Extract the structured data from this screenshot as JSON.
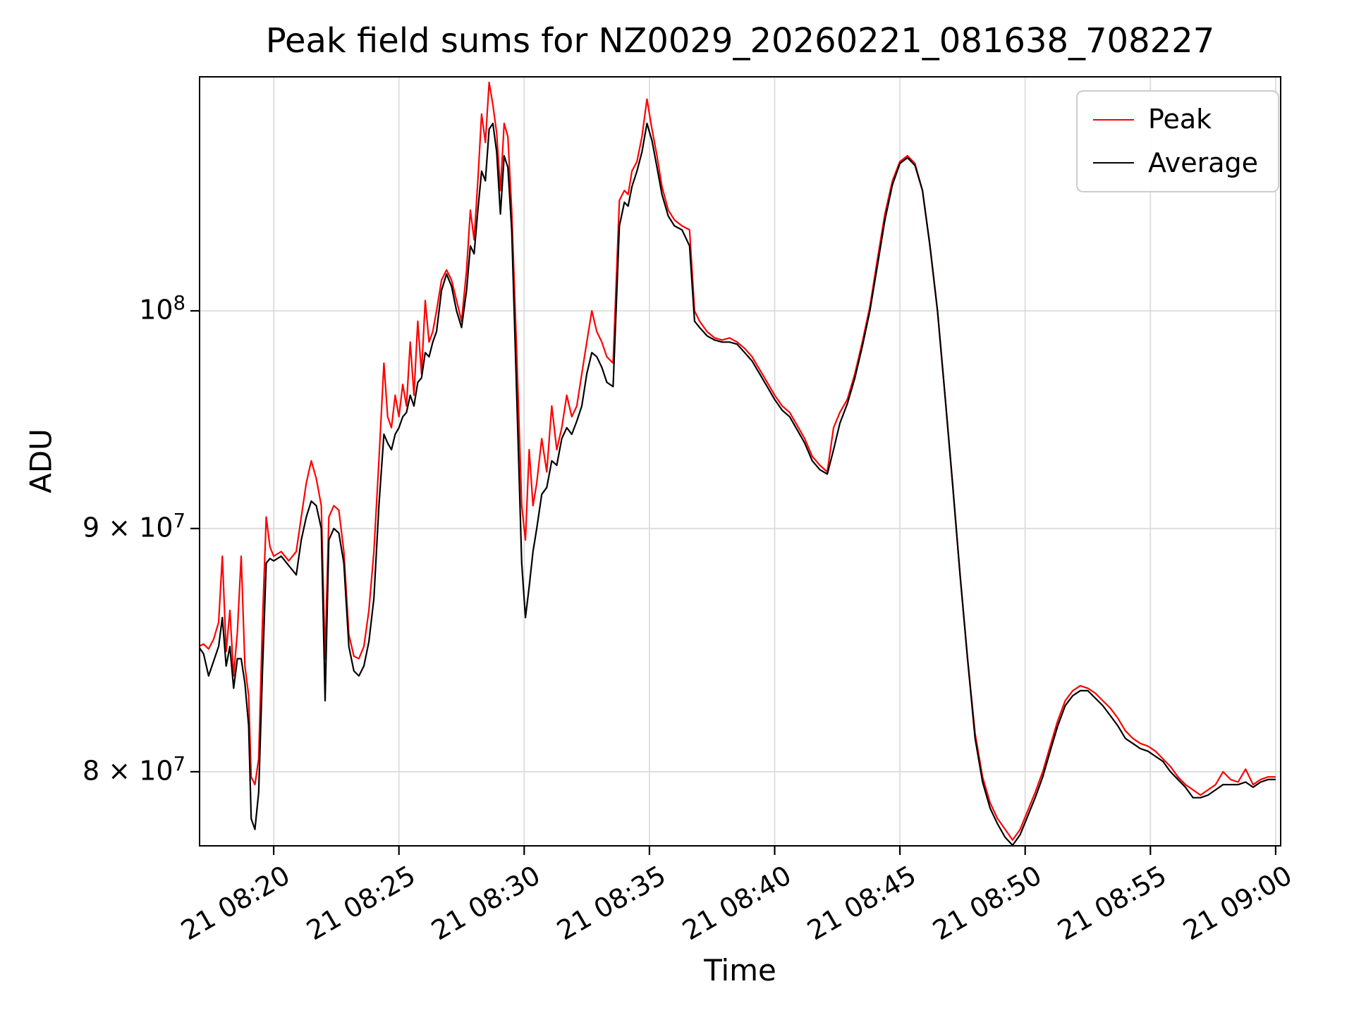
{
  "chart_data": {
    "type": "line",
    "title": "Peak field sums for NZ0029_20260221_081638_708227",
    "xlabel": "Time",
    "ylabel": "ADU",
    "y_scale": "log",
    "grid": true,
    "grid_color": "#dcdcdc",
    "legend_position": "upper right",
    "xlim_minutes": [
      17.04,
      60.2
    ],
    "ylim": [
      77180000,
      112000000
    ],
    "value_scale": 10000000,
    "x_ticks": [
      {
        "minute": 20,
        "label": "21 08:20"
      },
      {
        "minute": 25,
        "label": "21 08:25"
      },
      {
        "minute": 30,
        "label": "21 08:30"
      },
      {
        "minute": 35,
        "label": "21 08:35"
      },
      {
        "minute": 40,
        "label": "21 08:40"
      },
      {
        "minute": 45,
        "label": "21 08:45"
      },
      {
        "minute": 50,
        "label": "21 08:50"
      },
      {
        "minute": 55,
        "label": "21 08:55"
      },
      {
        "minute": 60,
        "label": "21 09:00"
      }
    ],
    "y_ticks": [
      {
        "value": 100000000,
        "label": "10^8",
        "coeff": "",
        "exp": "8"
      },
      {
        "value": 90000000,
        "label": "9 × 10^7",
        "coeff": "9 × ",
        "exp": "7"
      },
      {
        "value": 80000000,
        "label": "8 × 10^7",
        "coeff": "8 × ",
        "exp": "7"
      }
    ],
    "x_minutes": [
      17.0,
      17.2,
      17.4,
      17.6,
      17.8,
      17.95,
      18.1,
      18.25,
      18.4,
      18.55,
      18.7,
      18.85,
      19.0,
      19.1,
      19.25,
      19.4,
      19.55,
      19.7,
      19.85,
      20.0,
      20.3,
      20.6,
      20.9,
      21.1,
      21.3,
      21.5,
      21.7,
      21.9,
      22.05,
      22.2,
      22.4,
      22.6,
      22.8,
      23.0,
      23.2,
      23.4,
      23.6,
      23.8,
      24.0,
      24.2,
      24.4,
      24.55,
      24.7,
      24.85,
      25.0,
      25.15,
      25.3,
      25.45,
      25.6,
      25.75,
      25.9,
      26.05,
      26.2,
      26.35,
      26.5,
      26.7,
      26.9,
      27.1,
      27.3,
      27.5,
      27.7,
      27.85,
      28.0,
      28.15,
      28.3,
      28.45,
      28.6,
      28.75,
      28.9,
      29.05,
      29.2,
      29.35,
      29.5,
      29.7,
      29.9,
      30.05,
      30.2,
      30.35,
      30.5,
      30.7,
      30.9,
      31.1,
      31.3,
      31.5,
      31.7,
      31.9,
      32.1,
      32.3,
      32.5,
      32.7,
      32.9,
      33.1,
      33.3,
      33.55,
      33.8,
      34.0,
      34.15,
      34.3,
      34.5,
      34.7,
      34.9,
      35.1,
      35.3,
      35.5,
      35.75,
      36.0,
      36.3,
      36.6,
      36.8,
      37.0,
      37.3,
      37.6,
      37.9,
      38.2,
      38.5,
      38.8,
      39.1,
      39.4,
      39.7,
      40.0,
      40.3,
      40.6,
      40.9,
      41.2,
      41.5,
      41.8,
      42.1,
      42.35,
      42.6,
      42.9,
      43.2,
      43.5,
      43.8,
      44.1,
      44.4,
      44.7,
      45.0,
      45.3,
      45.6,
      45.9,
      46.2,
      46.5,
      46.8,
      47.1,
      47.4,
      47.7,
      48.0,
      48.3,
      48.6,
      48.9,
      49.2,
      49.5,
      49.8,
      50.1,
      50.4,
      50.7,
      51.0,
      51.3,
      51.6,
      51.9,
      52.2,
      52.5,
      52.8,
      53.1,
      53.4,
      53.7,
      54.0,
      54.3,
      54.6,
      54.9,
      55.2,
      55.5,
      55.8,
      56.1,
      56.4,
      56.7,
      57.0,
      57.3,
      57.6,
      57.9,
      58.2,
      58.5,
      58.8,
      59.1,
      59.4,
      59.7,
      60.0
    ],
    "series": [
      {
        "name": "Peak",
        "color": "#ff0000",
        "values_e7": [
          8.5,
          8.51,
          8.49,
          8.53,
          8.6,
          8.88,
          8.48,
          8.65,
          8.38,
          8.56,
          8.88,
          8.42,
          8.3,
          7.98,
          7.95,
          8.05,
          8.6,
          9.05,
          8.92,
          8.88,
          8.9,
          8.86,
          8.9,
          9.05,
          9.2,
          9.3,
          9.22,
          9.1,
          8.45,
          9.05,
          9.1,
          9.08,
          8.9,
          8.55,
          8.46,
          8.45,
          8.5,
          8.65,
          8.9,
          9.3,
          9.75,
          9.5,
          9.45,
          9.6,
          9.5,
          9.65,
          9.55,
          9.85,
          9.6,
          9.95,
          9.7,
          10.05,
          9.85,
          9.9,
          10.0,
          10.15,
          10.2,
          10.15,
          10.05,
          9.95,
          10.2,
          10.5,
          10.35,
          10.65,
          11.0,
          10.85,
          11.17,
          11.05,
          10.9,
          10.6,
          10.95,
          10.88,
          10.5,
          9.8,
          9.1,
          8.95,
          9.35,
          9.1,
          9.2,
          9.4,
          9.25,
          9.55,
          9.35,
          9.45,
          9.6,
          9.5,
          9.55,
          9.7,
          9.85,
          10.0,
          9.9,
          9.85,
          9.78,
          9.75,
          10.55,
          10.6,
          10.58,
          10.7,
          10.75,
          10.88,
          11.08,
          10.92,
          10.78,
          10.62,
          10.5,
          10.45,
          10.42,
          10.4,
          10.0,
          9.95,
          9.9,
          9.87,
          9.86,
          9.87,
          9.85,
          9.82,
          9.78,
          9.72,
          9.66,
          9.6,
          9.55,
          9.52,
          9.46,
          9.4,
          9.32,
          9.28,
          9.25,
          9.45,
          9.52,
          9.58,
          9.7,
          9.85,
          10.02,
          10.25,
          10.48,
          10.65,
          10.75,
          10.78,
          10.74,
          10.6,
          10.32,
          10.0,
          9.6,
          9.2,
          8.8,
          8.45,
          8.15,
          7.98,
          7.88,
          7.82,
          7.78,
          7.74,
          7.78,
          7.85,
          7.92,
          8.0,
          8.1,
          8.2,
          8.28,
          8.32,
          8.34,
          8.33,
          8.31,
          8.28,
          8.25,
          8.21,
          8.16,
          8.13,
          8.11,
          8.1,
          8.08,
          8.05,
          8.02,
          7.98,
          7.95,
          7.93,
          7.91,
          7.93,
          7.95,
          8.0,
          7.97,
          7.96,
          8.01,
          7.95,
          7.97,
          7.98,
          7.98
        ]
      },
      {
        "name": "Average",
        "color": "#000000",
        "values_e7": [
          8.5,
          8.47,
          8.38,
          8.44,
          8.5,
          8.62,
          8.42,
          8.5,
          8.33,
          8.45,
          8.45,
          8.35,
          8.18,
          7.82,
          7.78,
          7.92,
          8.4,
          8.85,
          8.87,
          8.86,
          8.88,
          8.84,
          8.8,
          8.95,
          9.05,
          9.12,
          9.1,
          9.0,
          8.28,
          8.95,
          9.0,
          8.98,
          8.85,
          8.5,
          8.4,
          8.38,
          8.42,
          8.52,
          8.7,
          9.1,
          9.42,
          9.38,
          9.35,
          9.42,
          9.45,
          9.5,
          9.52,
          9.6,
          9.55,
          9.66,
          9.68,
          9.8,
          9.78,
          9.85,
          9.9,
          10.1,
          10.18,
          10.12,
          10.0,
          9.92,
          10.1,
          10.32,
          10.28,
          10.5,
          10.7,
          10.65,
          10.92,
          10.95,
          10.8,
          10.48,
          10.78,
          10.72,
          10.4,
          9.6,
          8.85,
          8.62,
          8.75,
          8.9,
          9.0,
          9.15,
          9.18,
          9.3,
          9.28,
          9.4,
          9.45,
          9.42,
          9.48,
          9.55,
          9.7,
          9.8,
          9.78,
          9.73,
          9.66,
          9.64,
          10.42,
          10.54,
          10.52,
          10.62,
          10.7,
          10.8,
          10.95,
          10.86,
          10.72,
          10.58,
          10.47,
          10.42,
          10.4,
          10.32,
          9.95,
          9.92,
          9.88,
          9.86,
          9.85,
          9.85,
          9.84,
          9.8,
          9.76,
          9.7,
          9.64,
          9.58,
          9.53,
          9.5,
          9.44,
          9.38,
          9.3,
          9.26,
          9.24,
          9.35,
          9.47,
          9.56,
          9.68,
          9.83,
          10.0,
          10.22,
          10.45,
          10.63,
          10.74,
          10.77,
          10.73,
          10.6,
          10.32,
          10.0,
          9.6,
          9.2,
          8.8,
          8.45,
          8.13,
          7.96,
          7.86,
          7.8,
          7.75,
          7.72,
          7.76,
          7.83,
          7.9,
          7.98,
          8.08,
          8.18,
          8.26,
          8.3,
          8.32,
          8.32,
          8.29,
          8.26,
          8.22,
          8.18,
          8.13,
          8.11,
          8.09,
          8.08,
          8.06,
          8.04,
          8.0,
          7.97,
          7.94,
          7.9,
          7.9,
          7.91,
          7.93,
          7.95,
          7.95,
          7.95,
          7.96,
          7.94,
          7.96,
          7.97,
          7.97
        ]
      }
    ]
  }
}
